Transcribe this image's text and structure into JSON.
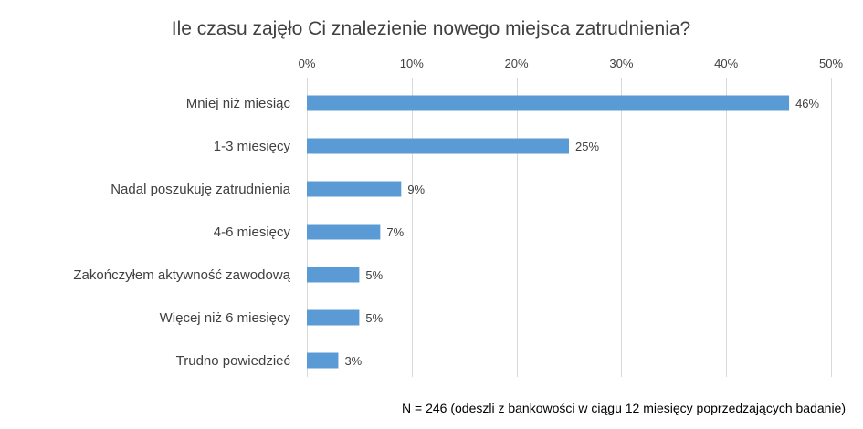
{
  "chart_data": {
    "type": "bar",
    "orientation": "horizontal",
    "title": "Ile czasu zajęło Ci znalezienie nowego miejsca zatrudnienia?",
    "categories": [
      "Mniej niż miesiąc",
      "1-3 miesięcy",
      "Nadal poszukuję zatrudnienia",
      "4-6 miesięcy",
      "Zakończyłem aktywność zawodową",
      "Więcej niż 6 miesięcy",
      "Trudno powiedzieć"
    ],
    "values": [
      46,
      25,
      9,
      7,
      5,
      5,
      3
    ],
    "data_labels": [
      "46%",
      "25%",
      "9%",
      "7%",
      "5%",
      "5%",
      "3%"
    ],
    "x_ticks": [
      0,
      10,
      20,
      30,
      40,
      50
    ],
    "x_tick_labels": [
      "0%",
      "10%",
      "20%",
      "30%",
      "40%",
      "50%"
    ],
    "xlim": [
      0,
      50
    ],
    "x_axis_position": "top",
    "grid": true,
    "legend": "none",
    "bar_color": "#5b9bd5"
  },
  "footnote": "N = 246 (odeszli z bankowości w ciągu 12 miesięcy poprzedzających badanie)"
}
